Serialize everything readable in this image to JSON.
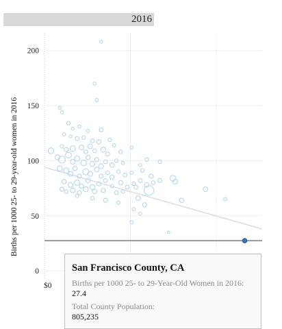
{
  "year_label": "2016",
  "chart_data": {
    "type": "scatter",
    "title": "",
    "ylabel": "Births per 1000 25- to 29-year-old women in 2016",
    "xlabel": "",
    "x_tick_labels": [
      "$0"
    ],
    "y_ticks": [
      0,
      50,
      100,
      150,
      200
    ],
    "ylim": [
      -8,
      216
    ],
    "grid": true,
    "trend_line": {
      "start": [
        0,
        94
      ],
      "end": [
        1,
        38
      ]
    },
    "highlight": {
      "x": 0.92,
      "y": 27.4,
      "color": "#3b72b8"
    },
    "highlight_line": {
      "y": 27.4
    },
    "points": [
      [
        0.26,
        208,
        2.2
      ],
      [
        0.23,
        170,
        2.2
      ],
      [
        0.24,
        155,
        2.5
      ],
      [
        0.07,
        148,
        2.2
      ],
      [
        0.08,
        144,
        2.2
      ],
      [
        0.11,
        134,
        2.5
      ],
      [
        0.13,
        129,
        2.2
      ],
      [
        0.16,
        131,
        2.2
      ],
      [
        0.2,
        127,
        2.4
      ],
      [
        0.26,
        128,
        2.8
      ],
      [
        0.09,
        124,
        2.4
      ],
      [
        0.12,
        122,
        2.2
      ],
      [
        0.15,
        120,
        3
      ],
      [
        0.18,
        121,
        2.6
      ],
      [
        0.22,
        118,
        2.8
      ],
      [
        0.25,
        117,
        3.2
      ],
      [
        0.3,
        119,
        2.5
      ],
      [
        0.08,
        113,
        2.6
      ],
      [
        0.1,
        110,
        3.2
      ],
      [
        0.13,
        111,
        4
      ],
      [
        0.17,
        112,
        3.5
      ],
      [
        0.19,
        108,
        2.8
      ],
      [
        0.21,
        113,
        3.4
      ],
      [
        0.23,
        109,
        2.6
      ],
      [
        0.27,
        110,
        3.6
      ],
      [
        0.29,
        106,
        3
      ],
      [
        0.32,
        114,
        2.4
      ],
      [
        0.35,
        108,
        2.6
      ],
      [
        0.4,
        112,
        2.2
      ],
      [
        0.03,
        109,
        4.2
      ],
      [
        0.06,
        103,
        3.6
      ],
      [
        0.08,
        101,
        5
      ],
      [
        0.11,
        105,
        4.4
      ],
      [
        0.13,
        99,
        3.5
      ],
      [
        0.15,
        102,
        3.8
      ],
      [
        0.18,
        98,
        4.2
      ],
      [
        0.2,
        103,
        3.2
      ],
      [
        0.22,
        97,
        3.6
      ],
      [
        0.24,
        101,
        3
      ],
      [
        0.26,
        95,
        3.5
      ],
      [
        0.28,
        99,
        2.8
      ],
      [
        0.31,
        96,
        3.2
      ],
      [
        0.33,
        100,
        2.6
      ],
      [
        0.36,
        98,
        2.4
      ],
      [
        0.44,
        96,
        2.4
      ],
      [
        0.47,
        101,
        2.6
      ],
      [
        0.53,
        99,
        2.6
      ],
      [
        0.07,
        93,
        3.8
      ],
      [
        0.1,
        91,
        4
      ],
      [
        0.12,
        88,
        3.5
      ],
      [
        0.14,
        93,
        3.2
      ],
      [
        0.16,
        86,
        3
      ],
      [
        0.19,
        90,
        4.5
      ],
      [
        0.21,
        88,
        3.6
      ],
      [
        0.24,
        92,
        3.4
      ],
      [
        0.26,
        86,
        3
      ],
      [
        0.29,
        89,
        2.8
      ],
      [
        0.31,
        85,
        3.2
      ],
      [
        0.34,
        90,
        2.6
      ],
      [
        0.37,
        87,
        2.8
      ],
      [
        0.4,
        89,
        2.4
      ],
      [
        0.45,
        91,
        2.6
      ],
      [
        0.49,
        86,
        3
      ],
      [
        0.09,
        81,
        3.2
      ],
      [
        0.12,
        78,
        3.6
      ],
      [
        0.15,
        80,
        4
      ],
      [
        0.17,
        77,
        3.2
      ],
      [
        0.2,
        82,
        3.4
      ],
      [
        0.22,
        76,
        3.8
      ],
      [
        0.25,
        79,
        3
      ],
      [
        0.28,
        82,
        2.8
      ],
      [
        0.31,
        77,
        2.6
      ],
      [
        0.35,
        80,
        3.2
      ],
      [
        0.38,
        76,
        2.8
      ],
      [
        0.41,
        79,
        2.6
      ],
      [
        0.44,
        82,
        3
      ],
      [
        0.47,
        78,
        3.4
      ],
      [
        0.5,
        80,
        2.8
      ],
      [
        0.53,
        82,
        3
      ],
      [
        0.59,
        84,
        4.2
      ],
      [
        0.6,
        81,
        3.6
      ],
      [
        0.08,
        74,
        3
      ],
      [
        0.1,
        72,
        2.6
      ],
      [
        0.13,
        73,
        3.4
      ],
      [
        0.16,
        71,
        3
      ],
      [
        0.19,
        74,
        3.6
      ],
      [
        0.23,
        72,
        3.2
      ],
      [
        0.27,
        73,
        3
      ],
      [
        0.33,
        71,
        2.8
      ],
      [
        0.36,
        72,
        2.4
      ],
      [
        0.42,
        76,
        3
      ],
      [
        0.48,
        73,
        7
      ],
      [
        0.74,
        74,
        3.4
      ],
      [
        0.15,
        68,
        2.4
      ],
      [
        0.22,
        66,
        2.6
      ],
      [
        0.28,
        64,
        3
      ],
      [
        0.34,
        62,
        2.4
      ],
      [
        0.43,
        66,
        3.4
      ],
      [
        0.46,
        60,
        3
      ],
      [
        0.63,
        64,
        3.2
      ],
      [
        0.83,
        65,
        2.4
      ],
      [
        0.41,
        56,
        2.4
      ],
      [
        0.44,
        52,
        2.2
      ],
      [
        0.4,
        44,
        2.4
      ],
      [
        0.57,
        35,
        1.8
      ]
    ]
  },
  "tooltip": {
    "title": "San Francisco County, CA",
    "births_label": "Births per 1000 25- to 29-Year-Old Women in 2016:",
    "births_value": "27.4",
    "population_label": "Total County Population:",
    "population_value": "805,235"
  }
}
